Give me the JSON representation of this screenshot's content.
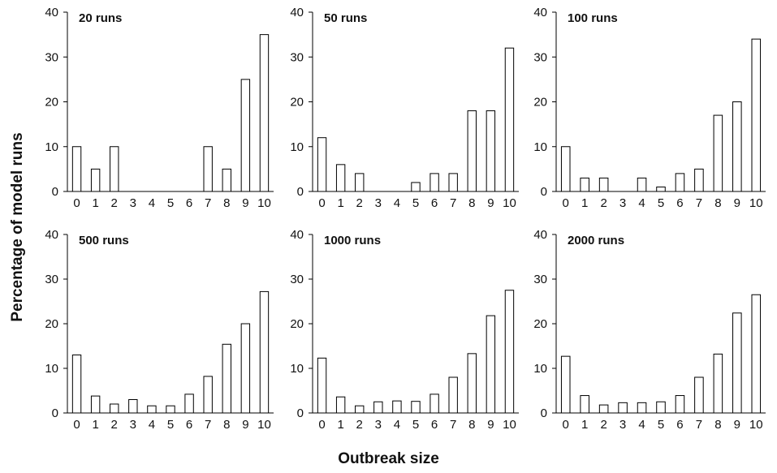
{
  "figure": {
    "ylabel": "Percentage of model runs",
    "xlabel": "Outbreak size"
  },
  "chart_data": [
    {
      "type": "bar",
      "title": "20 runs",
      "categories": [
        "0",
        "1",
        "2",
        "3",
        "4",
        "5",
        "6",
        "7",
        "8",
        "9",
        "10"
      ],
      "values": [
        10,
        5,
        10,
        0,
        0,
        0,
        0,
        10,
        5,
        25,
        35
      ],
      "ylim": [
        0,
        40
      ],
      "yticks": [
        0,
        10,
        20,
        30,
        40
      ]
    },
    {
      "type": "bar",
      "title": "50 runs",
      "categories": [
        "0",
        "1",
        "2",
        "3",
        "4",
        "5",
        "6",
        "7",
        "8",
        "9",
        "10"
      ],
      "values": [
        12,
        6,
        4,
        0,
        0,
        2,
        4,
        4,
        18,
        18,
        32
      ],
      "ylim": [
        0,
        40
      ],
      "yticks": [
        0,
        10,
        20,
        30,
        40
      ]
    },
    {
      "type": "bar",
      "title": "100 runs",
      "categories": [
        "0",
        "1",
        "2",
        "3",
        "4",
        "5",
        "6",
        "7",
        "8",
        "9",
        "10"
      ],
      "values": [
        10,
        3,
        3,
        0,
        3,
        1,
        4,
        5,
        17,
        20,
        34
      ],
      "ylim": [
        0,
        40
      ],
      "yticks": [
        0,
        10,
        20,
        30,
        40
      ]
    },
    {
      "type": "bar",
      "title": "500 runs",
      "categories": [
        "0",
        "1",
        "2",
        "3",
        "4",
        "5",
        "6",
        "7",
        "8",
        "9",
        "10"
      ],
      "values": [
        13,
        3.8,
        2,
        3,
        1.6,
        1.6,
        4.2,
        8.2,
        15.4,
        20,
        27.2
      ],
      "ylim": [
        0,
        40
      ],
      "yticks": [
        0,
        10,
        20,
        30,
        40
      ]
    },
    {
      "type": "bar",
      "title": "1000 runs",
      "categories": [
        "0",
        "1",
        "2",
        "3",
        "4",
        "5",
        "6",
        "7",
        "8",
        "9",
        "10"
      ],
      "values": [
        12.3,
        3.6,
        1.6,
        2.5,
        2.7,
        2.6,
        4.2,
        8,
        13.3,
        21.8,
        27.5
      ],
      "ylim": [
        0,
        40
      ],
      "yticks": [
        0,
        10,
        20,
        30,
        40
      ]
    },
    {
      "type": "bar",
      "title": "2000 runs",
      "categories": [
        "0",
        "1",
        "2",
        "3",
        "4",
        "5",
        "6",
        "7",
        "8",
        "9",
        "10"
      ],
      "values": [
        12.7,
        3.9,
        1.8,
        2.3,
        2.3,
        2.5,
        3.9,
        8,
        13.2,
        22.4,
        26.5
      ],
      "ylim": [
        0,
        40
      ],
      "yticks": [
        0,
        10,
        20,
        30,
        40
      ]
    }
  ]
}
